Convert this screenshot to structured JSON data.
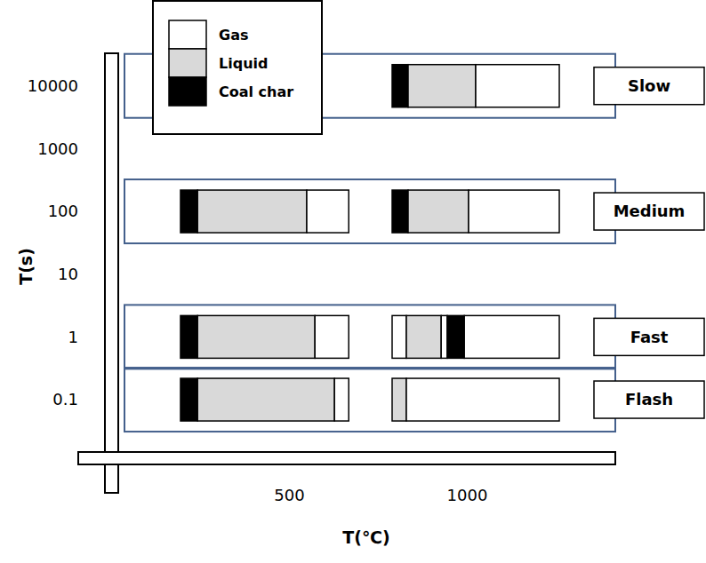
{
  "chart_data": {
    "type": "bar",
    "orientation": "horizontal",
    "stacked": true,
    "log": "y",
    "legend": "top-left",
    "x_label": "T(℃)",
    "y_label": "T(s)",
    "xlim": [
      0,
      1400
    ],
    "xticks": [
      500,
      1000
    ],
    "ylim": [
      0.03,
      30000
    ],
    "yticks": [
      10000,
      1000,
      100,
      10,
      1,
      0.1
    ],
    "series": [
      {
        "name": "Gas",
        "color": "#ffffff"
      },
      {
        "name": "Liquid",
        "color": "#d9d9d9"
      },
      {
        "name": "Coal char",
        "color": "#000000"
      }
    ],
    "groups": [
      {
        "label": "Slow",
        "y": 10000,
        "bars": [
          {
            "start": 790,
            "segments": [
              {
                "product": "Coal char",
                "value": 45
              },
              {
                "product": "Liquid",
                "value": 190
              },
              {
                "product": "Gas",
                "value": 235
              }
            ]
          }
        ]
      },
      {
        "label": "Medium",
        "y": 100,
        "bars": [
          {
            "start": 195,
            "segments": [
              {
                "product": "Coal char",
                "value": 48
              },
              {
                "product": "Liquid",
                "value": 307
              },
              {
                "product": "Gas",
                "value": 118
              }
            ]
          },
          {
            "start": 790,
            "segments": [
              {
                "product": "Coal char",
                "value": 45
              },
              {
                "product": "Liquid",
                "value": 170
              },
              {
                "product": "Gas",
                "value": 255
              }
            ]
          }
        ]
      },
      {
        "label": "Fast",
        "y": 1,
        "bars": [
          {
            "start": 195,
            "segments": [
              {
                "product": "Coal char",
                "value": 48
              },
              {
                "product": "Liquid",
                "value": 330
              },
              {
                "product": "Gas",
                "value": 95
              }
            ]
          },
          {
            "start": 790,
            "segments": [
              {
                "product": "Gas",
                "value": 40
              },
              {
                "product": "Liquid",
                "value": 98
              },
              {
                "product": "Gas",
                "value": 17
              },
              {
                "product": "Coal char",
                "value": 48
              },
              {
                "product": "Gas",
                "value": 267
              }
            ]
          }
        ]
      },
      {
        "label": "Flash",
        "y": 0.1,
        "bars": [
          {
            "start": 195,
            "segments": [
              {
                "product": "Coal char",
                "value": 48
              },
              {
                "product": "Liquid",
                "value": 385
              },
              {
                "product": "Gas",
                "value": 40
              }
            ]
          },
          {
            "start": 790,
            "segments": [
              {
                "product": "Liquid",
                "value": 40
              },
              {
                "product": "Gas",
                "value": 430
              }
            ]
          }
        ]
      }
    ]
  }
}
